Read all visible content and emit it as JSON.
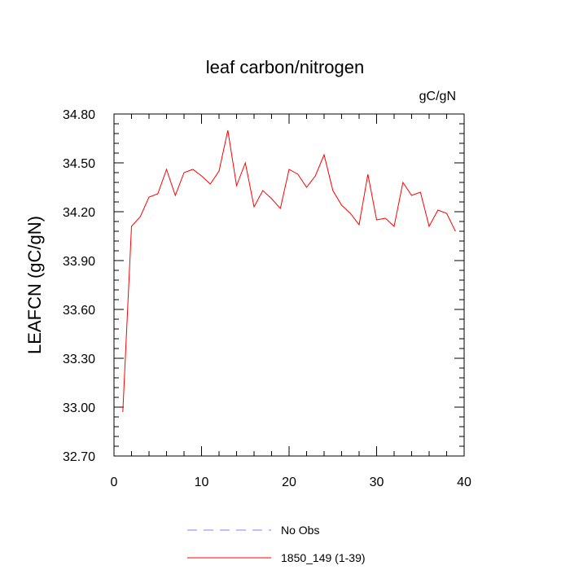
{
  "chart_data": {
    "type": "line",
    "title": "leaf carbon/nitrogen",
    "units_label": "gC/gN",
    "ylabel": "LEAFCN  (gC/gN)",
    "xlabel": "",
    "xlim": [
      0,
      40
    ],
    "ylim": [
      32.7,
      34.8
    ],
    "xticks": [
      0,
      10,
      20,
      30,
      40
    ],
    "xtick_labels": [
      "0",
      "10",
      "20",
      "30",
      "40"
    ],
    "yticks": [
      32.7,
      33.0,
      33.3,
      33.6,
      33.9,
      34.2,
      34.5,
      34.8
    ],
    "ytick_labels": [
      "32.70",
      "33.00",
      "33.30",
      "33.60",
      "33.90",
      "34.20",
      "34.50",
      "34.80"
    ],
    "grid": false,
    "legend_position": "bottom-center",
    "series": [
      {
        "name": "No Obs",
        "color": "#8080ff",
        "dash": "dashed",
        "x": [],
        "values": []
      },
      {
        "name": "1850_149 (1-39)",
        "color": "#ff0000",
        "dash": "solid",
        "x": [
          1,
          2,
          3,
          4,
          5,
          6,
          7,
          8,
          9,
          10,
          11,
          12,
          13,
          14,
          15,
          16,
          17,
          18,
          19,
          20,
          21,
          22,
          23,
          24,
          25,
          26,
          27,
          28,
          29,
          30,
          31,
          32,
          33,
          34,
          35,
          36,
          37,
          38,
          39
        ],
        "values": [
          32.97,
          34.11,
          34.17,
          34.29,
          34.31,
          34.46,
          34.3,
          34.44,
          34.46,
          34.42,
          34.37,
          34.45,
          34.7,
          34.36,
          34.5,
          34.23,
          34.33,
          34.28,
          34.22,
          34.46,
          34.43,
          34.35,
          34.42,
          34.55,
          34.33,
          34.24,
          34.19,
          34.12,
          34.43,
          34.15,
          34.16,
          34.11,
          34.38,
          34.3,
          34.32,
          34.11,
          34.21,
          34.19,
          34.08
        ]
      }
    ]
  }
}
